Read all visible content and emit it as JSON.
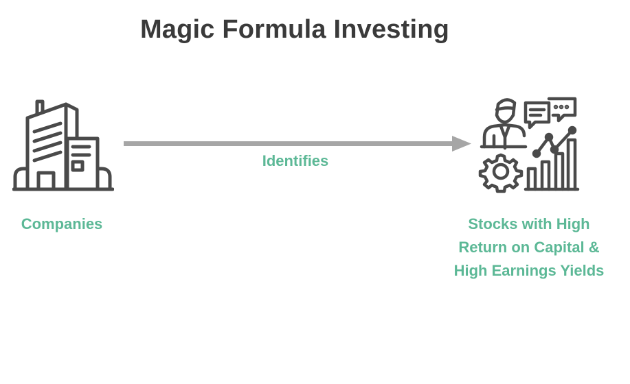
{
  "title": "Magic Formula Investing",
  "edge": {
    "label": "Identifies",
    "color": "#a6a6a6"
  },
  "nodes": {
    "source": {
      "label": "Companies",
      "icon": "office-building-icon"
    },
    "target": {
      "label_lines": [
        "Stocks with High",
        "Return on Capital &",
        "High Earnings Yields"
      ],
      "icon": "businessman-analytics-icon"
    }
  },
  "colors": {
    "title": "#3a3a3a",
    "accent": "#5cb896",
    "icon_stroke": "#4a4a4a",
    "arrow": "#a6a6a6"
  }
}
